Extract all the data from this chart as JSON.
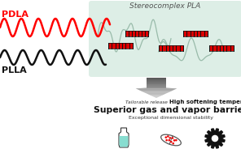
{
  "title": "Stereocomplex PLA",
  "pdla_label": "PDLA",
  "plla_label": "PLLA",
  "text_tailorable": "Tailorable release",
  "text_high_soft": "High softening temperature",
  "text_superior": "Superior gas and vapor barrier",
  "text_exceptional": "Exceptional dimensional stability",
  "bg_box_color": "#ddeee6",
  "pdla_color": "#ff0000",
  "plla_color": "#111111",
  "stereocomplex_red": "#dd0000",
  "stereocomplex_black": "#111111",
  "arrow_color_top": "#555555",
  "arrow_color_bot": "#aaaaaa",
  "chain_color": "#99bbaa",
  "bottle_fill_color": "#88ddd0",
  "gear_color": "#111111",
  "pill_outline_color": "#555555",
  "pill_dots_color": "#ee0000",
  "figsize": [
    2.96,
    1.89
  ],
  "dpi": 100
}
